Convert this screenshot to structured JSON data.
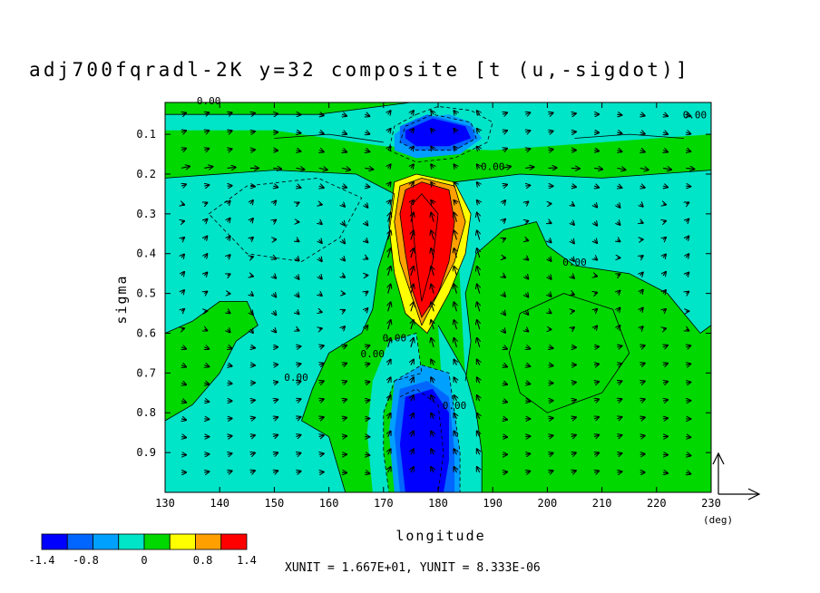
{
  "chart_data": {
    "type": "contour",
    "title": "adj700fqradl-2K y=32 composite [t (u,-sigdot)]",
    "xlabel": "longitude",
    "ylabel": "sigma",
    "x_unit_label": "(deg)",
    "xlim": [
      130,
      230
    ],
    "ylim": [
      1.0,
      0.02
    ],
    "y_reversed": true,
    "x_ticks": [
      "130",
      "140",
      "150",
      "160",
      "170",
      "180",
      "190",
      "200",
      "210",
      "220",
      "230"
    ],
    "y_ticks": [
      "0.1",
      "0.2",
      "0.3",
      "0.4",
      "0.5",
      "0.6",
      "0.7",
      "0.8",
      "0.9"
    ],
    "contour_labels": [
      {
        "text": "0.00",
        "lon": 138,
        "sig": 0.025
      },
      {
        "text": "0.00",
        "lon": 227,
        "sig": 0.06
      },
      {
        "text": "0.00",
        "lon": 190,
        "sig": 0.19
      },
      {
        "text": "0.00",
        "lon": 205,
        "sig": 0.43
      },
      {
        "text": "0.00",
        "lon": 154,
        "sig": 0.72
      },
      {
        "text": "0.00",
        "lon": 168,
        "sig": 0.66
      },
      {
        "text": "0.00",
        "lon": 172,
        "sig": 0.62
      },
      {
        "text": "0.00",
        "lon": 183,
        "sig": 0.79
      }
    ],
    "colorbar": {
      "levels": [
        -1.4,
        -1.05,
        -0.7,
        -0.35,
        0,
        0.35,
        0.7,
        1.05,
        1.4
      ],
      "colors": [
        "#0000ff",
        "#0066ff",
        "#00a0ff",
        "#00e4c8",
        "#00d800",
        "#ffff00",
        "#ffa000",
        "#ff0000"
      ],
      "tick_labels": [
        "-1.4",
        "-0.8",
        "0",
        "0.8",
        "1.4"
      ]
    },
    "vector_reference": "XUNIT = 1.667E+01, YUNIT = 8.333E-06"
  },
  "regions": [
    {
      "level": 0,
      "color": "#00d800",
      "poly": [
        [
          130,
          0.02
        ],
        [
          230,
          0.02
        ],
        [
          230,
          1.0
        ],
        [
          130,
          1.0
        ]
      ]
    },
    {
      "level": -1,
      "color": "#00e4c8",
      "poly": [
        [
          130,
          0.09
        ],
        [
          150,
          0.09
        ],
        [
          170,
          0.13
        ],
        [
          190,
          0.14
        ],
        [
          210,
          0.12
        ],
        [
          230,
          0.1
        ],
        [
          230,
          0.02
        ],
        [
          175,
          0.02
        ],
        [
          158,
          0.05
        ],
        [
          130,
          0.05
        ]
      ]
    },
    {
      "level": -1,
      "color": "#00e4c8",
      "poly": [
        [
          130,
          0.21
        ],
        [
          150,
          0.19
        ],
        [
          165,
          0.2
        ],
        [
          172,
          0.25
        ],
        [
          171,
          0.35
        ],
        [
          169,
          0.44
        ],
        [
          168,
          0.54
        ],
        [
          166,
          0.6
        ],
        [
          160,
          0.65
        ],
        [
          157,
          0.74
        ],
        [
          155,
          0.82
        ],
        [
          160,
          0.86
        ],
        [
          163,
          1.0
        ],
        [
          130,
          1.0
        ],
        [
          130,
          0.82
        ],
        [
          135,
          0.78
        ],
        [
          140,
          0.7
        ],
        [
          143,
          0.62
        ],
        [
          147,
          0.58
        ],
        [
          145,
          0.52
        ],
        [
          140,
          0.52
        ],
        [
          135,
          0.57
        ],
        [
          130,
          0.6
        ]
      ]
    },
    {
      "level": -1,
      "color": "#00e4c8",
      "poly": [
        [
          183,
          0.22
        ],
        [
          195,
          0.2
        ],
        [
          210,
          0.21
        ],
        [
          230,
          0.19
        ],
        [
          230,
          0.58
        ],
        [
          228,
          0.6
        ],
        [
          225,
          0.55
        ],
        [
          222,
          0.5
        ],
        [
          215,
          0.45
        ],
        [
          205,
          0.43
        ],
        [
          200,
          0.38
        ],
        [
          198,
          0.32
        ],
        [
          192,
          0.34
        ],
        [
          187,
          0.4
        ],
        [
          185,
          0.5
        ],
        [
          186,
          0.62
        ],
        [
          185,
          0.72
        ]
      ]
    },
    {
      "level": -1,
      "color": "#00e4c8",
      "poly": [
        [
          180,
          0.58
        ],
        [
          185,
          0.7
        ],
        [
          187,
          0.8
        ],
        [
          188,
          0.9
        ],
        [
          188,
          1.0
        ],
        [
          183,
          1.0
        ],
        [
          181,
          0.8
        ]
      ]
    },
    {
      "level": -1,
      "color": "#00e4c8",
      "poly": [
        [
          171,
          0.62
        ],
        [
          176,
          0.6
        ],
        [
          177,
          0.7
        ],
        [
          172,
          0.72
        ],
        [
          170,
          0.8
        ],
        [
          170,
          0.9
        ],
        [
          171,
          1.0
        ],
        [
          168,
          1.0
        ],
        [
          167,
          0.85
        ],
        [
          168,
          0.72
        ]
      ]
    },
    {
      "level": -2,
      "color": "#00a0ff",
      "poly": [
        [
          172,
          0.1
        ],
        [
          176,
          0.06
        ],
        [
          182,
          0.05
        ],
        [
          186,
          0.07
        ],
        [
          188,
          0.11
        ],
        [
          184,
          0.15
        ],
        [
          176,
          0.16
        ],
        [
          172,
          0.14
        ]
      ]
    },
    {
      "level": -2,
      "color": "#00a0ff",
      "poly": [
        [
          172,
          0.72
        ],
        [
          177,
          0.68
        ],
        [
          182,
          0.7
        ],
        [
          183,
          0.8
        ],
        [
          184,
          0.9
        ],
        [
          184,
          1.0
        ],
        [
          172,
          1.0
        ],
        [
          171,
          0.85
        ]
      ]
    },
    {
      "level": -3,
      "color": "#0066ff",
      "poly": [
        [
          173,
          0.08
        ],
        [
          178,
          0.05
        ],
        [
          186,
          0.08
        ],
        [
          187,
          0.11
        ],
        [
          183,
          0.14
        ],
        [
          176,
          0.14
        ],
        [
          173,
          0.12
        ]
      ]
    },
    {
      "level": -3,
      "color": "#0066ff",
      "poly": [
        [
          173,
          0.74
        ],
        [
          178,
          0.72
        ],
        [
          182,
          0.76
        ],
        [
          183,
          0.9
        ],
        [
          183,
          1.0
        ],
        [
          173,
          1.0
        ],
        [
          172,
          0.85
        ]
      ]
    },
    {
      "level": -4,
      "color": "#0000ff",
      "poly": [
        [
          174,
          0.09
        ],
        [
          179,
          0.06
        ],
        [
          185,
          0.08
        ],
        [
          186,
          0.11
        ],
        [
          182,
          0.13
        ],
        [
          176,
          0.13
        ],
        [
          174,
          0.11
        ]
      ]
    },
    {
      "level": -4,
      "color": "#0000ff",
      "poly": [
        [
          174,
          0.76
        ],
        [
          179,
          0.74
        ],
        [
          182,
          0.8
        ],
        [
          182,
          0.92
        ],
        [
          181,
          1.0
        ],
        [
          174,
          1.0
        ],
        [
          173,
          0.88
        ]
      ]
    },
    {
      "level": 1,
      "color": "#ffff00",
      "poly": [
        [
          172,
          0.22
        ],
        [
          176,
          0.2
        ],
        [
          183,
          0.22
        ],
        [
          186,
          0.3
        ],
        [
          185,
          0.4
        ],
        [
          182,
          0.5
        ],
        [
          178,
          0.6
        ],
        [
          174,
          0.55
        ],
        [
          172,
          0.45
        ],
        [
          171,
          0.33
        ]
      ]
    },
    {
      "level": 2,
      "color": "#ffa000",
      "poly": [
        [
          173,
          0.23
        ],
        [
          177,
          0.21
        ],
        [
          183,
          0.23
        ],
        [
          185,
          0.32
        ],
        [
          183,
          0.42
        ],
        [
          180,
          0.5
        ],
        [
          177,
          0.58
        ],
        [
          175,
          0.5
        ],
        [
          173,
          0.42
        ],
        [
          172,
          0.32
        ]
      ]
    },
    {
      "level": 3,
      "color": "#ff0000",
      "poly": [
        [
          174,
          0.24
        ],
        [
          177,
          0.22
        ],
        [
          182,
          0.24
        ],
        [
          183,
          0.32
        ],
        [
          182,
          0.42
        ],
        [
          180,
          0.5
        ],
        [
          177,
          0.56
        ],
        [
          175,
          0.48
        ],
        [
          174,
          0.4
        ],
        [
          173,
          0.3
        ]
      ]
    }
  ],
  "contour_lines": [
    {
      "style": "solid",
      "pts": [
        [
          130,
          0.05
        ],
        [
          158,
          0.05
        ],
        [
          175,
          0.02
        ]
      ]
    },
    {
      "style": "solid",
      "pts": [
        [
          130,
          0.21
        ],
        [
          150,
          0.19
        ],
        [
          165,
          0.2
        ],
        [
          172,
          0.25
        ],
        [
          171,
          0.35
        ],
        [
          169,
          0.44
        ],
        [
          168,
          0.54
        ],
        [
          166,
          0.6
        ],
        [
          160,
          0.65
        ],
        [
          157,
          0.74
        ],
        [
          155,
          0.82
        ],
        [
          160,
          0.86
        ],
        [
          163,
          1.0
        ]
      ]
    },
    {
      "style": "solid",
      "pts": [
        [
          130,
          0.6
        ],
        [
          135,
          0.57
        ],
        [
          140,
          0.52
        ],
        [
          145,
          0.52
        ],
        [
          147,
          0.58
        ],
        [
          143,
          0.62
        ],
        [
          140,
          0.7
        ],
        [
          135,
          0.78
        ],
        [
          130,
          0.82
        ]
      ]
    },
    {
      "style": "solid",
      "pts": [
        [
          183,
          0.22
        ],
        [
          195,
          0.2
        ],
        [
          210,
          0.21
        ],
        [
          230,
          0.19
        ]
      ]
    },
    {
      "style": "solid",
      "pts": [
        [
          230,
          0.58
        ],
        [
          228,
          0.6
        ],
        [
          225,
          0.55
        ],
        [
          222,
          0.5
        ],
        [
          215,
          0.45
        ],
        [
          205,
          0.43
        ],
        [
          200,
          0.38
        ],
        [
          198,
          0.32
        ],
        [
          192,
          0.34
        ],
        [
          187,
          0.4
        ],
        [
          185,
          0.5
        ],
        [
          186,
          0.62
        ],
        [
          185,
          0.72
        ]
      ]
    },
    {
      "style": "solid",
      "pts": [
        [
          172,
          0.22
        ],
        [
          176,
          0.2
        ],
        [
          183,
          0.22
        ],
        [
          186,
          0.3
        ],
        [
          185,
          0.4
        ],
        [
          182,
          0.5
        ],
        [
          178,
          0.6
        ],
        [
          174,
          0.55
        ],
        [
          172,
          0.45
        ],
        [
          171,
          0.33
        ],
        [
          172,
          0.22
        ]
      ]
    },
    {
      "style": "solid",
      "pts": [
        [
          173,
          0.23
        ],
        [
          177,
          0.21
        ],
        [
          183,
          0.23
        ],
        [
          185,
          0.32
        ],
        [
          183,
          0.42
        ],
        [
          180,
          0.5
        ],
        [
          177,
          0.58
        ],
        [
          175,
          0.5
        ],
        [
          173,
          0.42
        ],
        [
          172,
          0.32
        ],
        [
          173,
          0.23
        ]
      ]
    },
    {
      "style": "solid",
      "pts": [
        [
          174,
          0.24
        ],
        [
          177,
          0.22
        ],
        [
          182,
          0.24
        ],
        [
          183,
          0.32
        ],
        [
          182,
          0.42
        ],
        [
          180,
          0.5
        ],
        [
          177,
          0.56
        ],
        [
          175,
          0.48
        ],
        [
          174,
          0.4
        ],
        [
          173,
          0.3
        ],
        [
          174,
          0.24
        ]
      ]
    },
    {
      "style": "solid",
      "pts": [
        [
          175,
          0.28
        ],
        [
          177,
          0.25
        ],
        [
          180,
          0.3
        ],
        [
          179,
          0.42
        ],
        [
          177,
          0.52
        ],
        [
          176,
          0.42
        ],
        [
          175,
          0.28
        ]
      ]
    },
    {
      "style": "solid",
      "pts": [
        [
          180,
          0.58
        ],
        [
          185,
          0.7
        ],
        [
          187,
          0.8
        ],
        [
          188,
          0.9
        ],
        [
          188,
          1.0
        ]
      ]
    },
    {
      "style": "solid",
      "pts": [
        [
          195,
          0.55
        ],
        [
          203,
          0.5
        ],
        [
          212,
          0.54
        ],
        [
          215,
          0.65
        ],
        [
          210,
          0.75
        ],
        [
          200,
          0.8
        ],
        [
          195,
          0.75
        ],
        [
          193,
          0.65
        ],
        [
          195,
          0.55
        ]
      ]
    },
    {
      "style": "solid",
      "pts": [
        [
          150,
          0.11
        ],
        [
          160,
          0.1
        ],
        [
          170,
          0.12
        ]
      ]
    },
    {
      "style": "solid",
      "pts": [
        [
          205,
          0.11
        ],
        [
          215,
          0.1
        ],
        [
          225,
          0.11
        ]
      ]
    },
    {
      "style": "dashed",
      "pts": [
        [
          176,
          0.05
        ],
        [
          180,
          0.03
        ],
        [
          186,
          0.04
        ],
        [
          190,
          0.07
        ],
        [
          189,
          0.12
        ],
        [
          183,
          0.16
        ],
        [
          176,
          0.17
        ],
        [
          171,
          0.14
        ],
        [
          172,
          0.08
        ],
        [
          176,
          0.05
        ]
      ]
    },
    {
      "style": "dashed",
      "pts": [
        [
          174,
          0.08
        ],
        [
          179,
          0.05
        ],
        [
          186,
          0.07
        ],
        [
          187,
          0.11
        ],
        [
          183,
          0.14
        ],
        [
          176,
          0.14
        ],
        [
          173,
          0.12
        ],
        [
          174,
          0.08
        ]
      ]
    },
    {
      "style": "dashed",
      "pts": [
        [
          138,
          0.3
        ],
        [
          145,
          0.23
        ],
        [
          158,
          0.21
        ],
        [
          166,
          0.26
        ],
        [
          162,
          0.36
        ],
        [
          155,
          0.42
        ],
        [
          145,
          0.4
        ],
        [
          138,
          0.3
        ]
      ]
    },
    {
      "style": "dashed",
      "pts": [
        [
          171,
          0.62
        ],
        [
          176,
          0.6
        ],
        [
          177,
          0.7
        ],
        [
          172,
          0.72
        ],
        [
          170,
          0.8
        ],
        [
          170,
          0.9
        ],
        [
          171,
          1.0
        ]
      ]
    },
    {
      "style": "dashed",
      "pts": [
        [
          172,
          0.72
        ],
        [
          177,
          0.68
        ],
        [
          182,
          0.7
        ],
        [
          183,
          0.8
        ],
        [
          184,
          0.9
        ],
        [
          184,
          1.0
        ]
      ]
    },
    {
      "style": "dashed",
      "pts": [
        [
          173,
          0.76
        ],
        [
          176,
          0.74
        ],
        [
          180,
          0.78
        ],
        [
          181,
          0.9
        ],
        [
          180,
          1.0
        ]
      ]
    }
  ]
}
